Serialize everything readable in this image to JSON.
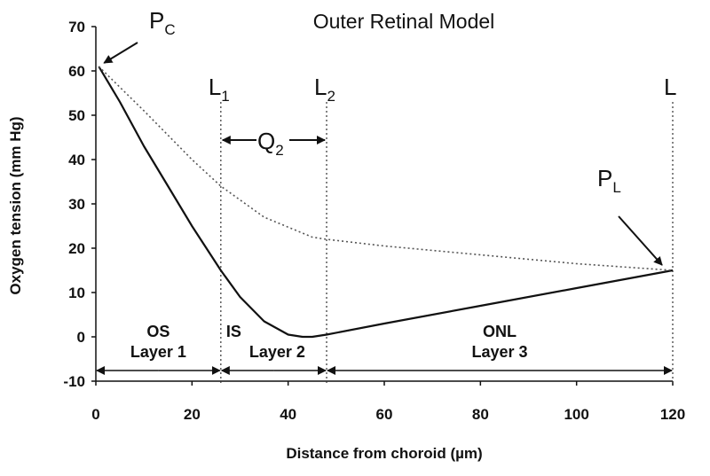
{
  "chart_data": {
    "type": "line",
    "title": "Outer Retinal Model",
    "xlabel": "Distance from choroid (µm)",
    "ylabel": "Oxygen tension (mm Hg)",
    "xlim": [
      0,
      120
    ],
    "ylim": [
      -10,
      70
    ],
    "xticks": [
      0,
      20,
      40,
      60,
      80,
      100,
      120
    ],
    "yticks": [
      -10,
      0,
      10,
      20,
      30,
      40,
      50,
      60,
      70
    ],
    "grid": false,
    "series": [
      {
        "style": "solid",
        "x": [
          0.6,
          5,
          10,
          15,
          20,
          26,
          30,
          35,
          40,
          43,
          45,
          48,
          60,
          80,
          100,
          120
        ],
        "y": [
          61,
          53,
          43,
          34,
          25,
          15,
          9,
          3.5,
          0.5,
          0,
          0,
          0.5,
          3,
          7,
          11,
          15
        ]
      },
      {
        "style": "dotted",
        "x": [
          0.6,
          10,
          20,
          26,
          35,
          45,
          48,
          60,
          80,
          100,
          120
        ],
        "y": [
          61,
          51,
          40,
          34,
          27,
          22.5,
          22,
          20.5,
          18.5,
          16.5,
          15
        ]
      }
    ],
    "boundaries": [
      {
        "x": 26,
        "label": "L",
        "sub": "1"
      },
      {
        "x": 48,
        "label": "L",
        "sub": "2"
      },
      {
        "x": 120,
        "label": "L",
        "sub": ""
      }
    ],
    "annotations": {
      "pc": {
        "label": "P",
        "sub": "C"
      },
      "pl": {
        "label": "P",
        "sub": "L"
      },
      "q2": {
        "label": "Q",
        "sub": "2"
      }
    },
    "regions": [
      {
        "top": "OS",
        "bottom": "Layer 1",
        "x_from": 0,
        "x_to": 26
      },
      {
        "top": "IS",
        "bottom": "Layer 2",
        "x_from": 26,
        "x_to": 48
      },
      {
        "top": "ONL",
        "bottom": "Layer 3",
        "x_from": 48,
        "x_to": 120
      }
    ]
  }
}
